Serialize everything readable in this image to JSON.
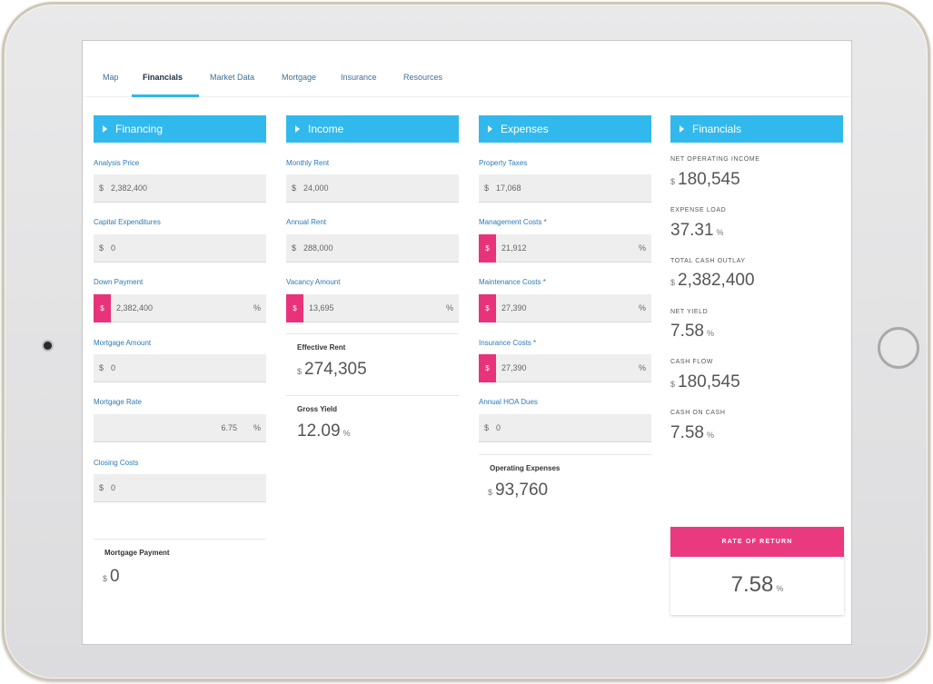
{
  "tabs": [
    {
      "label": "Map"
    },
    {
      "label": "Financials"
    },
    {
      "label": "Market Data"
    },
    {
      "label": "Mortgage"
    },
    {
      "label": "Insurance"
    },
    {
      "label": "Resources"
    }
  ],
  "financing": {
    "title": "Financing",
    "fields": [
      {
        "label": "Analysis Price",
        "currency": "$",
        "value": "2,382,400"
      },
      {
        "label": "Capital Expenditures",
        "currency": "$",
        "value": "0"
      },
      {
        "label": "Down Payment",
        "tag": "$",
        "value": "2,382,400",
        "unit": "%"
      },
      {
        "label": "Mortgage Amount",
        "currency": "$",
        "value": "0"
      },
      {
        "label": "Mortgage Rate",
        "value": "6.75",
        "unit": "%"
      },
      {
        "label": "Closing Costs",
        "currency": "$",
        "value": "0"
      }
    ],
    "summary": {
      "label": "Mortgage Payment",
      "currency": "$",
      "value": "0"
    }
  },
  "income": {
    "title": "Income",
    "fields": [
      {
        "label": "Monthly Rent",
        "currency": "$",
        "value": "24,000"
      },
      {
        "label": "Annual Rent",
        "currency": "$",
        "value": "288,000"
      },
      {
        "label": "Vacancy Amount",
        "tag": "$",
        "value": "13,695",
        "unit": "%"
      }
    ],
    "summaries": [
      {
        "label": "Effective Rent",
        "currency": "$",
        "value": "274,305"
      },
      {
        "label": "Gross Yield",
        "value": "12.09",
        "unit": "%"
      }
    ]
  },
  "expenses": {
    "title": "Expenses",
    "fields": [
      {
        "label": "Property Taxes",
        "currency": "$",
        "value": "17,068"
      },
      {
        "label": "Management Costs *",
        "tag": "$",
        "value": "21,912",
        "unit": "%"
      },
      {
        "label": "Maintenance Costs *",
        "tag": "$",
        "value": "27,390",
        "unit": "%"
      },
      {
        "label": "Insurance Costs *",
        "tag": "$",
        "value": "27,390",
        "unit": "%"
      },
      {
        "label": "Annual HOA Dues",
        "currency": "$",
        "value": "0"
      }
    ],
    "summary": {
      "label": "Operating Expenses",
      "currency": "$",
      "value": "93,760"
    }
  },
  "financials": {
    "title": "Financials",
    "items": [
      {
        "label": "NET OPERATING INCOME",
        "currency": "$",
        "value": "180,545"
      },
      {
        "label": "EXPENSE LOAD",
        "value": "37.31",
        "unit": "%"
      },
      {
        "label": "TOTAL CASH OUTLAY",
        "currency": "$",
        "value": "2,382,400"
      },
      {
        "label": "NET YIELD",
        "value": "7.58",
        "unit": "%"
      },
      {
        "label": "CASH FLOW",
        "currency": "$",
        "value": "180,545"
      },
      {
        "label": "CASH ON CASH",
        "value": "7.58",
        "unit": "%"
      }
    ],
    "rate_of_return": {
      "label": "RATE OF RETURN",
      "value": "7.58",
      "unit": "%"
    }
  },
  "colors": {
    "accent_blue": "#31b9ee",
    "accent_pink": "#e8337b",
    "label_blue": "#2c79b8"
  }
}
